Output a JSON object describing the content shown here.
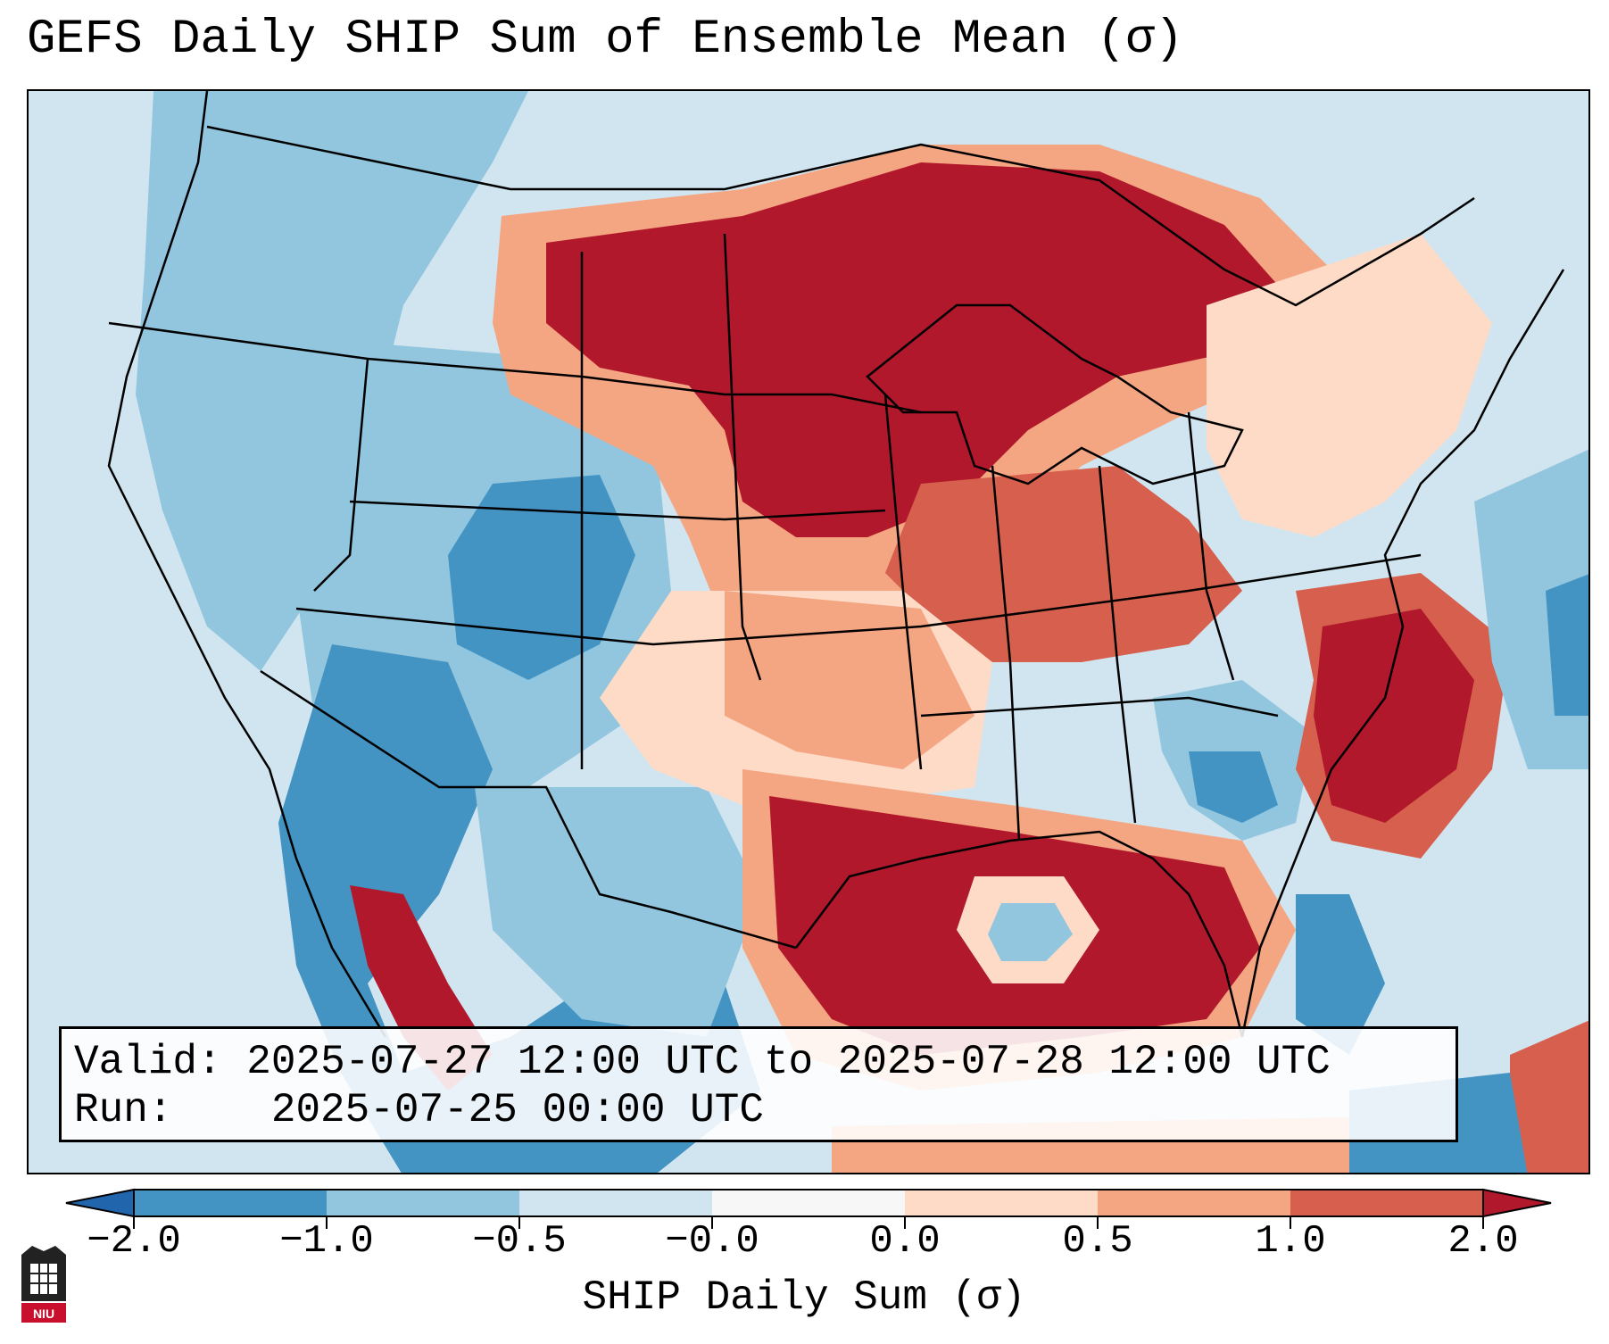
{
  "title": "GEFS Daily SHIP Sum of Ensemble Mean (σ)",
  "info": {
    "valid_label": "Valid:",
    "valid_value": "2025-07-27 12:00 UTC to 2025-07-28 12:00 UTC",
    "run_label": "Run:",
    "run_value": "2025-07-25 00:00 UTC"
  },
  "colorbar": {
    "label": "SHIP Daily Sum (σ)",
    "ticks": [
      "−2.0",
      "−1.0",
      "−0.5",
      "−0.0",
      "0.0",
      "0.5",
      "1.0",
      "2.0"
    ],
    "colors": [
      "#4393c3",
      "#92c5de",
      "#d1e5f0",
      "#f7f7f7",
      "#fddbc7",
      "#f4a582",
      "#d6604d",
      "#b2182b"
    ],
    "under_color": "#2166ac",
    "over_color": "#b2182b"
  },
  "logo": {
    "text": "NIU"
  }
}
